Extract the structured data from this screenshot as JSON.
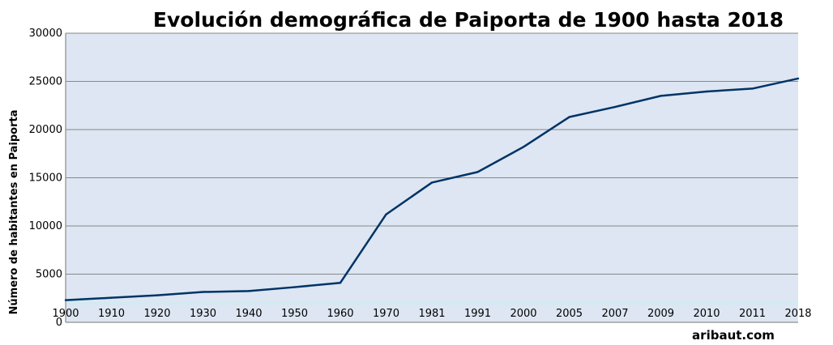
{
  "chart_data": {
    "type": "line",
    "title": "Evolución demográfica de Paiporta de 1900 hasta 2018",
    "ylabel": "Número de habitantes en Paiporta",
    "xlabel": "",
    "ylim": [
      0,
      30000
    ],
    "yticks": [
      "0",
      "5000",
      "10000",
      "15000",
      "20000",
      "25000",
      "30000"
    ],
    "categories": [
      "1900",
      "1910",
      "1920",
      "1930",
      "1940",
      "1950",
      "1960",
      "1970",
      "1981",
      "1991",
      "2000",
      "2005",
      "2007",
      "2009",
      "2010",
      "2011",
      "2018"
    ],
    "series": [
      {
        "values": [
          2300,
          2550,
          2800,
          3150,
          3250,
          3650,
          4100,
          11200,
          14500,
          15600,
          18200,
          21300,
          22350,
          23500,
          23950,
          24250,
          25300
        ]
      }
    ],
    "grid": true,
    "legend": "none",
    "colors": {
      "plot_background": "#dde6f2",
      "line": "#003366",
      "grid": "#888888",
      "baseline": "#c8f0f0"
    }
  },
  "credit": "aribaut.com"
}
